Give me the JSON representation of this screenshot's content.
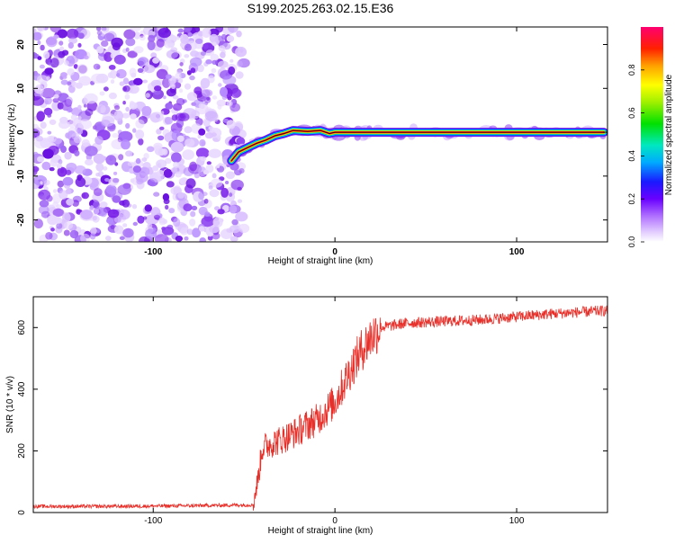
{
  "figure": {
    "title": "S199.2025.263.02.15.E36"
  },
  "chart_data": [
    {
      "type": "heatmap",
      "xlabel": "Height of straight line (km)",
      "ylabel": "Frequency (Hz)",
      "xlim": [
        -166,
        150
      ],
      "ylim": [
        -25,
        24
      ],
      "xticks": [
        -100,
        0,
        100
      ],
      "yticks": [
        -20,
        -10,
        0,
        10,
        20
      ],
      "grid": false,
      "noise_region_x": [
        -166,
        -53
      ],
      "ridge": {
        "x": [
          -57,
          -53,
          -48,
          -43,
          -38,
          -33,
          -28,
          -23,
          -15,
          -8,
          -3,
          0,
          10,
          20,
          40,
          60,
          80,
          100,
          120,
          148
        ],
        "y": [
          -6.5,
          -4.5,
          -3.5,
          -2.5,
          -1.8,
          -0.8,
          -0.3,
          0.4,
          0.2,
          0.4,
          -0.3,
          0.0,
          0.0,
          0.0,
          0.0,
          0.0,
          0.0,
          0.0,
          0.0,
          0.0
        ]
      },
      "colorbar": {
        "label": "Normalized spectral amplitude",
        "range": [
          0.0,
          1.0
        ],
        "ticks": [
          0.0,
          0.2,
          0.4,
          0.6,
          0.8
        ],
        "tick_labels": [
          "0.0",
          "0.2",
          "0.4",
          "0.6",
          "0.8"
        ]
      }
    },
    {
      "type": "line",
      "xlabel": "Height of straight line (km)",
      "ylabel": "SNR (10 * v/v)",
      "xlim": [
        -166,
        150
      ],
      "ylim": [
        0,
        700
      ],
      "xticks": [
        -100,
        0,
        100
      ],
      "yticks": [
        0,
        200,
        400,
        600
      ],
      "grid": false,
      "series": [
        {
          "color": "#e8302a",
          "x": [
            -166,
            -120,
            -80,
            -45,
            -42,
            -40,
            -35,
            -30,
            -25,
            -20,
            -15,
            -10,
            -5,
            0,
            5,
            10,
            15,
            20,
            25,
            30,
            40,
            60,
            80,
            100,
            120,
            150
          ],
          "y": [
            20,
            20,
            22,
            25,
            120,
            210,
            225,
            235,
            250,
            265,
            285,
            300,
            330,
            360,
            420,
            480,
            530,
            570,
            600,
            605,
            615,
            620,
            625,
            635,
            645,
            655
          ]
        }
      ]
    }
  ],
  "colors": {
    "axes": "#000000",
    "line": "#e8302a",
    "noise": "#8a2be2"
  }
}
